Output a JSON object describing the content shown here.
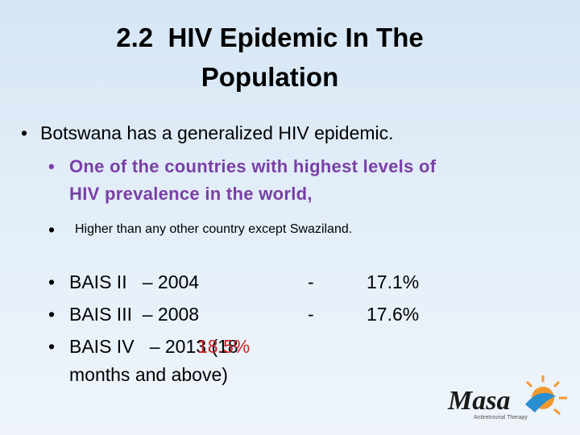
{
  "title": {
    "line1": "2.2  HIV Epidemic In The",
    "line2": "Population"
  },
  "bullets": {
    "main": "Botswana has a generalized HIV epidemic.",
    "sub1_line1": "One of the countries with highest levels of",
    "sub1_line2": "HIV prevalence in the world,",
    "sub2": "Higher than any other country except Swaziland."
  },
  "surveys": [
    {
      "label": "BAIS II   – 2004",
      "dash": "-",
      "value": "17.1%"
    },
    {
      "label": "BAIS III  – 2008",
      "dash": "-",
      "value": "17.6%"
    },
    {
      "label": "BAIS IV   – 2013 (18",
      "label_line2": "months and above)",
      "value": "18.5%"
    }
  ],
  "logo": {
    "name": "Masa",
    "tagline": "Antiretroviral Therapy"
  }
}
